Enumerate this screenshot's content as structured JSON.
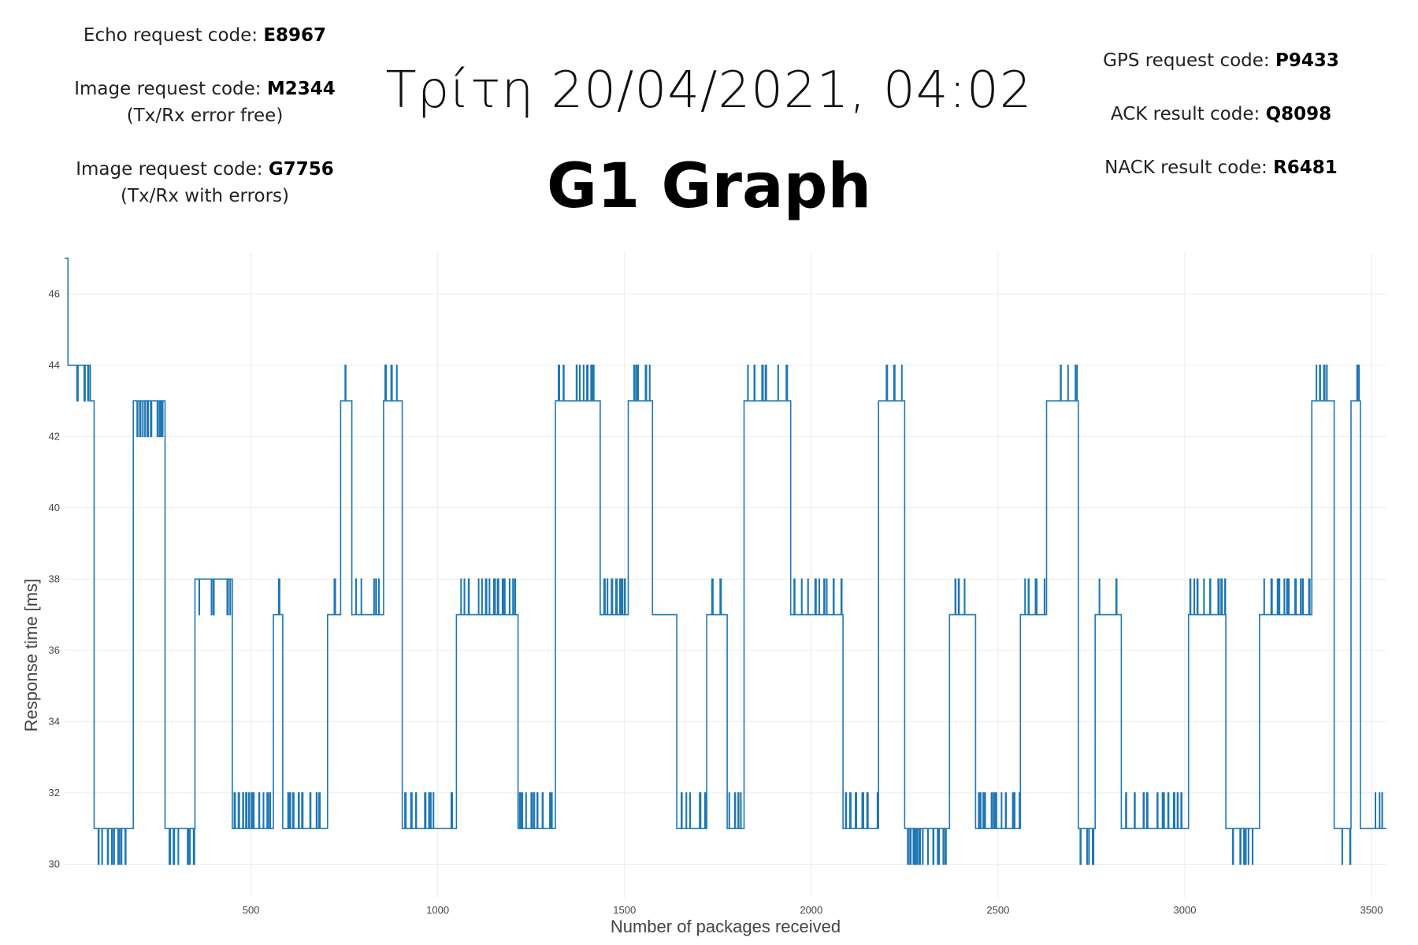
{
  "left_codes": [
    {
      "label": "Echo request code: ",
      "value": "E8967",
      "note": ""
    },
    {
      "label": "Image request code: ",
      "value": "M2344",
      "note": "(Tx/Rx error free)"
    },
    {
      "label": "Image request code: ",
      "value": "G7756",
      "note": "(Tx/Rx with errors)"
    }
  ],
  "right_codes": [
    {
      "label": "GPS request code: ",
      "value": "P9433"
    },
    {
      "label": "ACK result code: ",
      "value": "Q8098"
    },
    {
      "label": "NACK result code: ",
      "value": "R6481"
    }
  ],
  "timestamp": "Τρίτη 20/04/2021, 04:02",
  "graph_title": "G1 Graph",
  "chart_data": {
    "type": "line",
    "title": "G1 Graph",
    "xlabel": "Number of packages received",
    "ylabel": "Response time [ms]",
    "xlim": [
      1,
      3540
    ],
    "ylim": [
      29.5,
      47
    ],
    "x_ticks": [
      500,
      1000,
      1500,
      2000,
      2500,
      3000,
      3500
    ],
    "y_ticks": [
      30,
      32,
      34,
      36,
      38,
      40,
      42,
      44,
      46
    ],
    "grid": true,
    "legend": "none",
    "color": "#1f77b4",
    "series": [
      {
        "segments": [
          [
            1,
            47,
            44,
            10
          ],
          [
            10,
            44,
            43,
            70
          ],
          [
            70,
            43,
            43,
            80
          ],
          [
            80,
            31,
            30,
            185
          ],
          [
            185,
            43,
            42,
            270
          ],
          [
            270,
            31,
            30,
            350
          ],
          [
            350,
            38,
            37,
            450
          ],
          [
            450,
            31,
            32,
            560
          ],
          [
            560,
            37,
            38,
            585
          ],
          [
            585,
            31,
            32,
            705
          ],
          [
            705,
            37,
            38,
            740
          ],
          [
            740,
            43,
            44,
            770
          ],
          [
            770,
            37,
            38,
            855
          ],
          [
            855,
            43,
            44,
            905
          ],
          [
            905,
            31,
            32,
            1050
          ],
          [
            1050,
            37,
            38,
            1215
          ],
          [
            1215,
            31,
            32,
            1315
          ],
          [
            1315,
            43,
            44,
            1435
          ],
          [
            1435,
            37,
            38,
            1510
          ],
          [
            1510,
            43,
            44,
            1575
          ],
          [
            1575,
            37,
            37,
            1640
          ],
          [
            1640,
            31,
            32,
            1720
          ],
          [
            1720,
            37,
            38,
            1775
          ],
          [
            1775,
            31,
            32,
            1820
          ],
          [
            1820,
            43,
            44,
            1945
          ],
          [
            1945,
            37,
            38,
            2085
          ],
          [
            2085,
            31,
            32,
            2180
          ],
          [
            2180,
            43,
            44,
            2250
          ],
          [
            2250,
            31,
            30,
            2370
          ],
          [
            2370,
            37,
            38,
            2440
          ],
          [
            2440,
            31,
            32,
            2560
          ],
          [
            2560,
            37,
            38,
            2630
          ],
          [
            2630,
            43,
            44,
            2715
          ],
          [
            2715,
            31,
            30,
            2760
          ],
          [
            2760,
            37,
            38,
            2830
          ],
          [
            2830,
            31,
            32,
            3010
          ],
          [
            3010,
            37,
            38,
            3110
          ],
          [
            3110,
            31,
            30,
            3200
          ],
          [
            3200,
            37,
            38,
            3340
          ],
          [
            3340,
            43,
            44,
            3400
          ],
          [
            3400,
            31,
            30,
            3445
          ],
          [
            3445,
            43,
            44,
            3470
          ],
          [
            3470,
            31,
            32,
            3540
          ]
        ]
      }
    ]
  }
}
